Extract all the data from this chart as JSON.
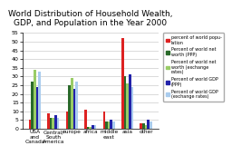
{
  "title": "World Distribution of Household Wealth,\nGDP, and Population in the Year 2000",
  "categories": [
    "USA\nand\nCanada",
    "Central/\nSouth\nAmerica",
    "europe",
    "africa",
    "middle\neast",
    "asia",
    "other"
  ],
  "series_names": [
    "percent of world popu-\nlation",
    "Percent of world net\nworth (PPP)",
    "Percent of world net\nworth (exchange\nrates)",
    "Percent of world GDP\n(PPP)",
    "Percent of world GDP\n(exchange rates)"
  ],
  "series_colors": [
    "#dd2222",
    "#2a6a2a",
    "#99cc66",
    "#2222aa",
    "#aaccee"
  ],
  "series_values": [
    [
      5,
      9,
      10,
      11,
      10,
      52,
      3
    ],
    [
      27,
      6,
      25,
      1,
      4,
      30,
      3
    ],
    [
      34,
      6,
      29,
      1,
      4,
      26,
      2
    ],
    [
      24,
      8,
      23,
      2,
      5,
      31,
      5
    ],
    [
      33,
      6,
      27,
      2,
      4,
      24,
      4
    ]
  ],
  "ylim": [
    0,
    55
  ],
  "yticks": [
    0,
    5,
    10,
    15,
    20,
    25,
    30,
    35,
    40,
    45,
    50,
    55
  ],
  "background_color": "#ffffff",
  "title_fontsize": 6.5,
  "bar_width": 0.13,
  "figsize": [
    2.77,
    1.82
  ],
  "dpi": 100
}
